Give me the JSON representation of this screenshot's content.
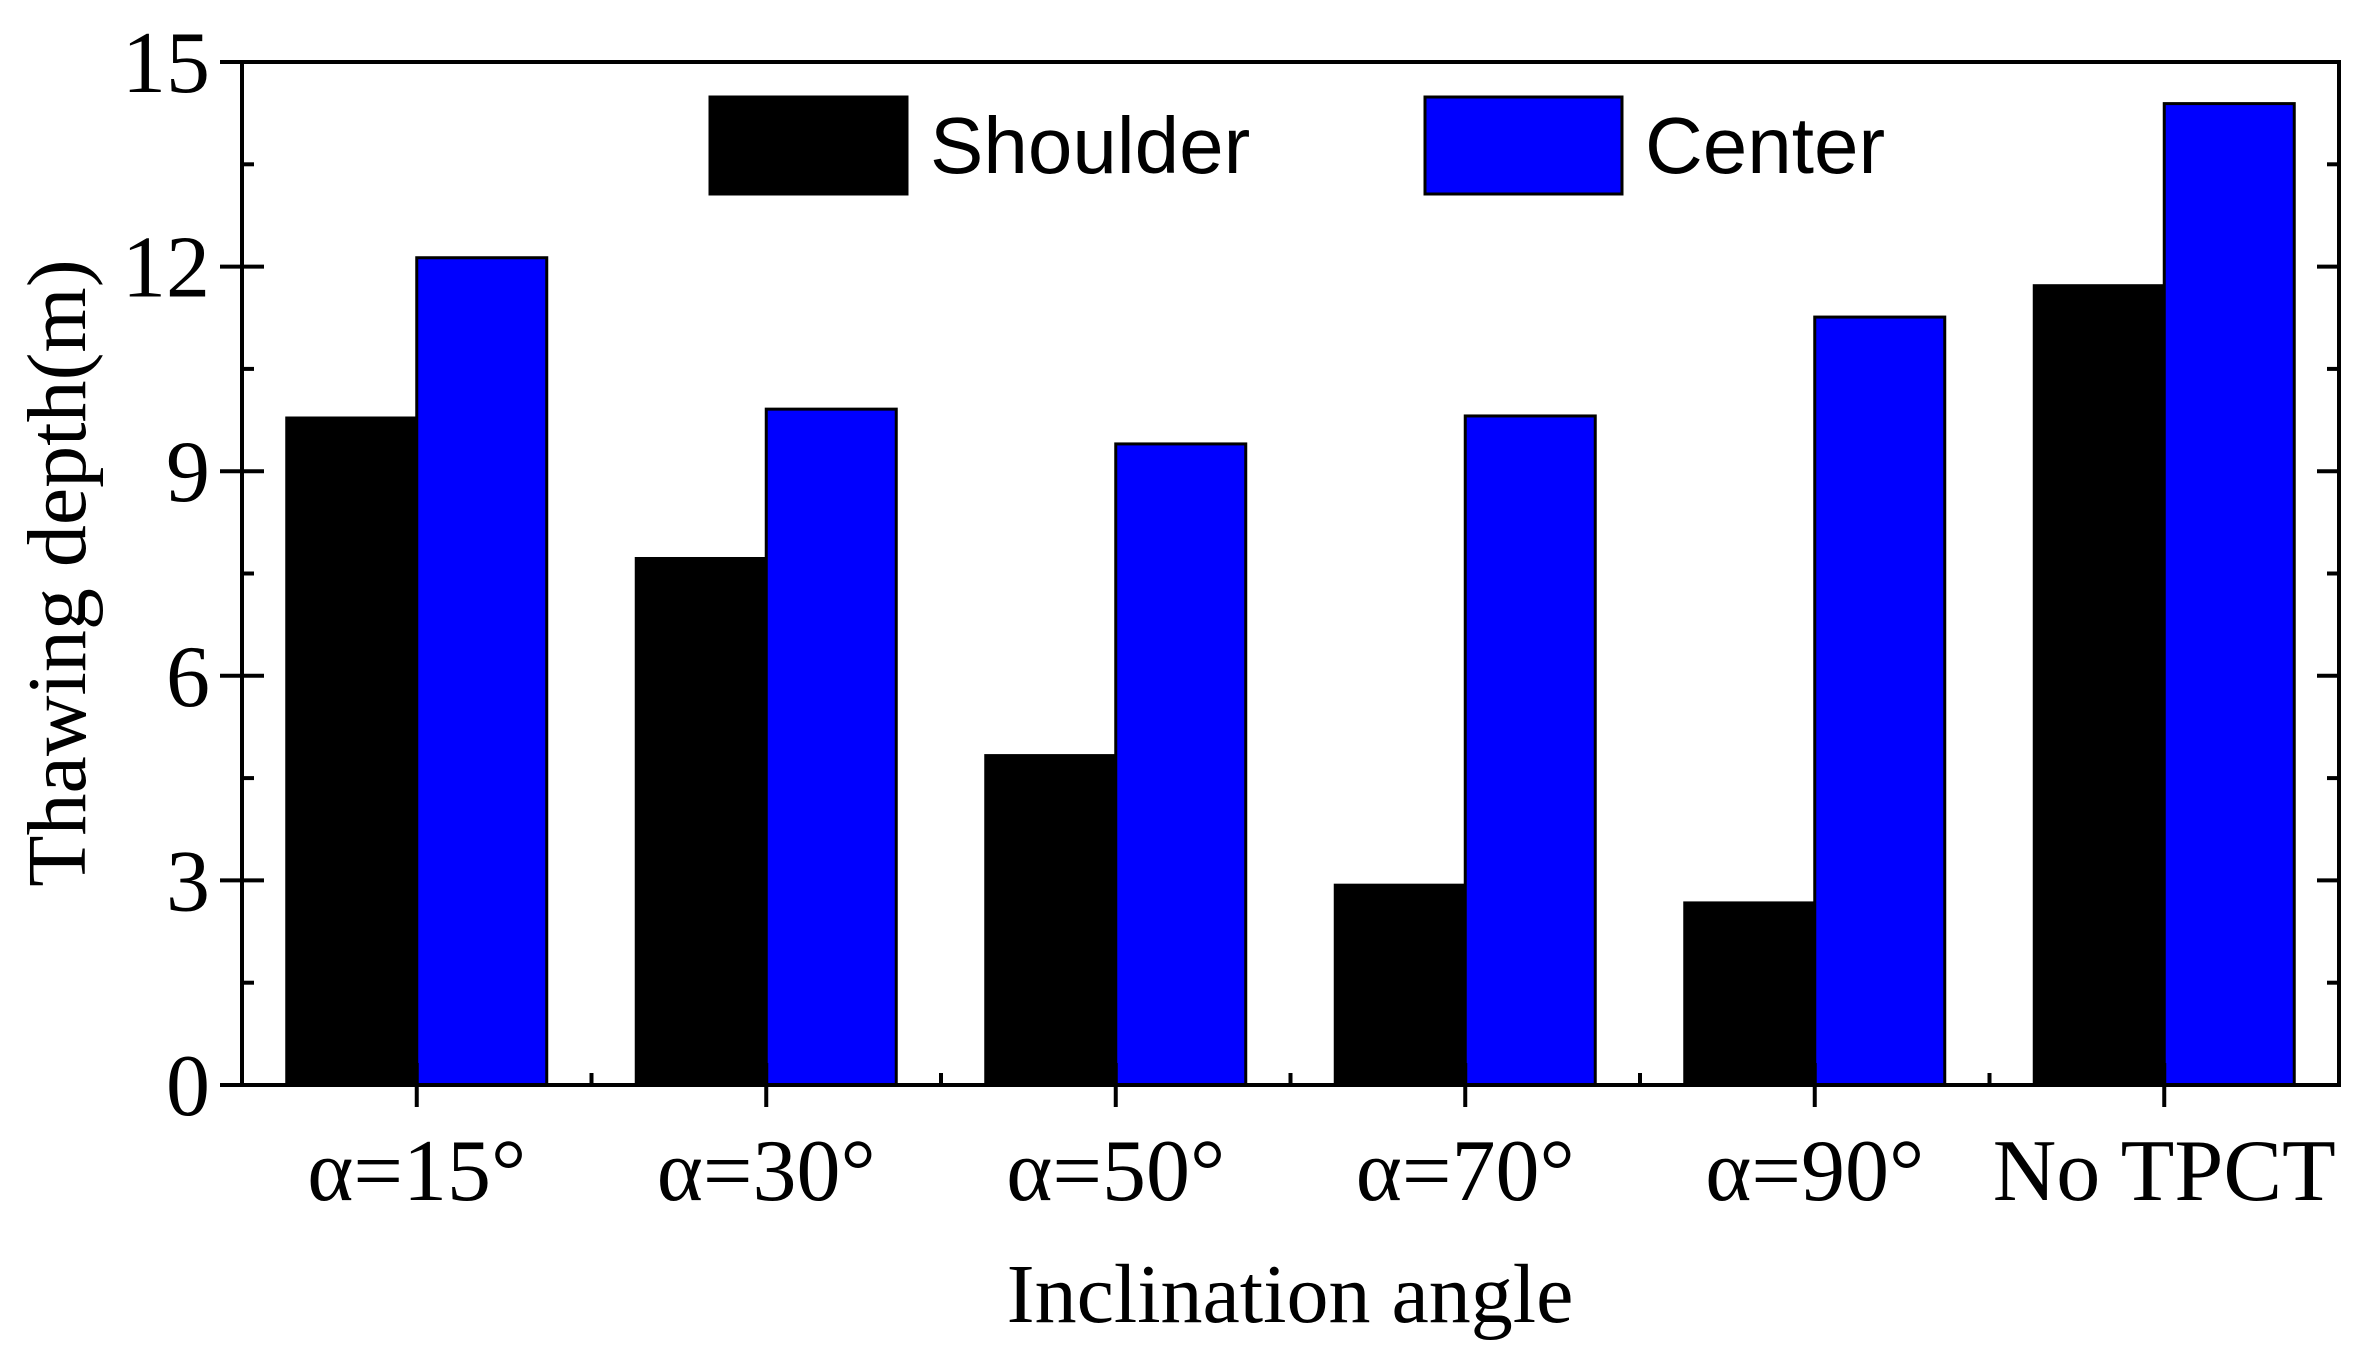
{
  "chart_data": {
    "type": "bar",
    "title": "",
    "xlabel": "Inclination angle",
    "ylabel": "Thawing depth(m)",
    "categories": [
      "α=15°",
      "α=30°",
      "α=50°",
      "α=70°",
      "α=90°",
      "No TPCT"
    ],
    "series": [
      {
        "name": "Shoulder",
        "color": "#000000",
        "values": [
          9.78,
          7.72,
          4.83,
          2.93,
          2.67,
          11.72
        ]
      },
      {
        "name": "Center",
        "color": "#0000ff",
        "values": [
          12.13,
          9.91,
          9.4,
          9.81,
          11.26,
          14.39
        ]
      }
    ],
    "ylim": [
      0,
      15
    ],
    "yticks": [
      0,
      3,
      6,
      9,
      12,
      15
    ],
    "legend_position": "top-center",
    "grid": false
  }
}
